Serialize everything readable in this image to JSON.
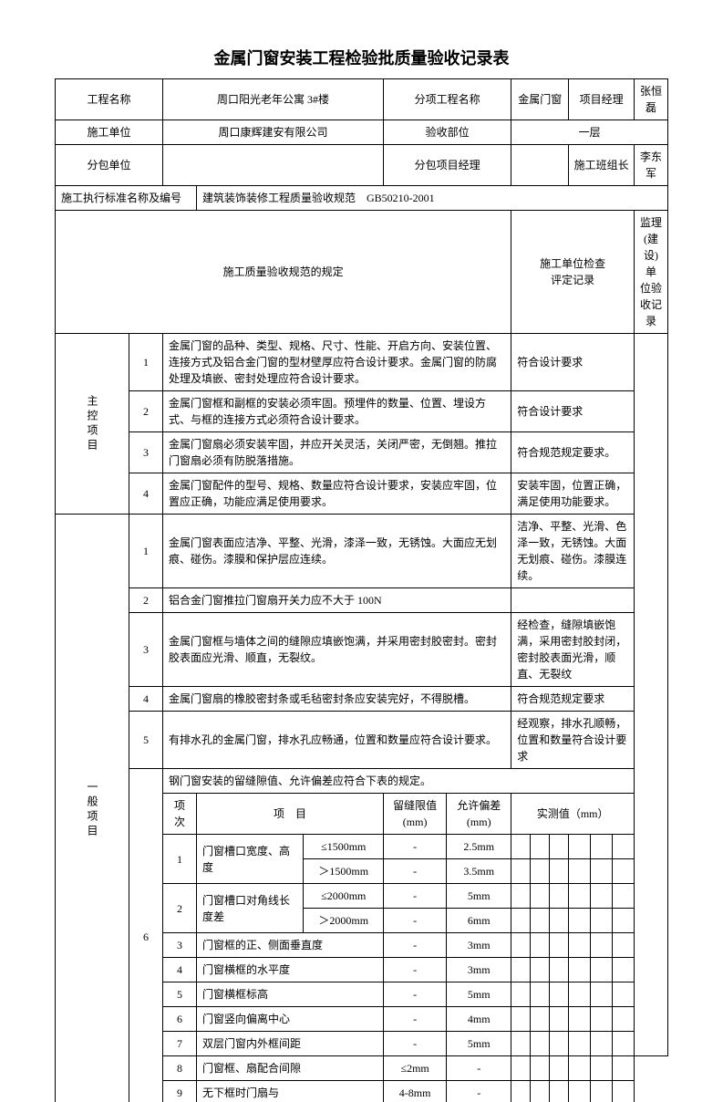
{
  "title": "金属门窗安装工程检验批质量验收记录表",
  "labels": {
    "project_name": "工程名称",
    "sub_project_name": "分项工程名称",
    "pm": "项目经理",
    "construction_unit": "施工单位",
    "acceptance_part": "验收部位",
    "subcontractor": "分包单位",
    "sub_pm": "分包项目经理",
    "team_leader": "施工班组长",
    "standard": "施工执行标准名称及编号",
    "spec_header": "施工质量验收规范的规定",
    "check_header": "施工单位检查\n评定记录",
    "supervise_header": "监理(建设)单\n位验收记录",
    "main_items": "主控项目",
    "general_items": "一般项目",
    "sub_table_intro": "钢门窗安装的留缝隙值、允许偏差应符合下表的规定。",
    "sub_num": "项\n次",
    "sub_item": "项　目",
    "sub_gap": "留缝限值\n(mm)",
    "sub_tol": "允许偏差\n(mm)",
    "sub_measured": "实测值（mm）"
  },
  "info": {
    "project_name": "周口阳光老年公寓 3#楼",
    "sub_project_name": "金属门窗",
    "pm": "张恒磊",
    "construction_unit": "周口康辉建安有限公司",
    "acceptance_part": "一层",
    "subcontractor": "",
    "sub_pm": "",
    "team_leader": "李东军",
    "standard_value": "建筑装饰装修工程质量验收规范　GB50210-2001"
  },
  "main_items": [
    {
      "n": "1",
      "spec": "金属门窗的品种、类型、规格、尺寸、性能、开启方向、安装位置、连接方式及铝合金门窗的型材壁厚应符合设计要求。金属门窗的防腐处理及填嵌、密封处理应符合设计要求。",
      "check": "符合设计要求"
    },
    {
      "n": "2",
      "spec": "金属门窗框和副框的安装必须牢固。预埋件的数量、位置、埋设方式、与框的连接方式必须符合设计要求。",
      "check": "符合设计要求"
    },
    {
      "n": "3",
      "spec": "金属门窗扇必须安装牢固，并应开关灵活，关闭严密，无倒翘。推拉门窗扇必须有防脱落措施。",
      "check": "符合规范规定要求。"
    },
    {
      "n": "4",
      "spec": "金属门窗配件的型号、规格、数量应符合设计要求，安装应牢固，位置应正确，功能应满足使用要求。",
      "check": "安装牢固，位置正确，满足使用功能要求。"
    }
  ],
  "general_items": [
    {
      "n": "1",
      "spec": "金属门窗表面应洁净、平整、光滑，漆泽一致，无锈蚀。大面应无划痕、碰伤。漆膜和保护层应连续。",
      "check": "洁净、平整、光滑、色泽一致，无锈蚀。大面无划痕、碰伤。漆膜连续。"
    },
    {
      "n": "2",
      "spec": "铝合金门窗推拉门窗扇开关力应不大于 100N",
      "check": ""
    },
    {
      "n": "3",
      "spec": "金属门窗框与墙体之间的缝隙应填嵌饱满，并采用密封胶密封。密封胶表面应光滑、顺直，无裂纹。",
      "check": "经检查，缝隙填嵌饱满，采用密封胶封闭，密封胶表面光滑，顺直、无裂纹"
    },
    {
      "n": "4",
      "spec": "金属门窗扇的橡胶密封条或毛毡密封条应安装完好，不得脱槽。",
      "check": "符合规范规定要求"
    },
    {
      "n": "5",
      "spec": "有排水孔的金属门窗，排水孔应畅通，位置和数量应符合设计要求。",
      "check": "经观察，排水孔顺畅，位置和数量符合设计要求"
    }
  ],
  "sub_rows": [
    {
      "n": "1",
      "item": "门窗槽口宽度、高度",
      "cond": "≤1500mm",
      "gap": "-",
      "tol": "2.5mm"
    },
    {
      "n": "",
      "item": "",
      "cond": "＞1500mm",
      "gap": "-",
      "tol": "3.5mm"
    },
    {
      "n": "2",
      "item": "门窗槽口对角线长度差",
      "cond": "≤2000mm",
      "gap": "-",
      "tol": "5mm"
    },
    {
      "n": "",
      "item": "",
      "cond": "＞2000mm",
      "gap": "-",
      "tol": "6mm"
    },
    {
      "n": "3",
      "item": "门窗框的正、侧面垂直度",
      "cond": "",
      "gap": "-",
      "tol": "3mm"
    },
    {
      "n": "4",
      "item": "门窗横框的水平度",
      "cond": "",
      "gap": "-",
      "tol": "3mm"
    },
    {
      "n": "5",
      "item": "门窗横框标高",
      "cond": "",
      "gap": "-",
      "tol": "5mm"
    },
    {
      "n": "6",
      "item": "门窗竖向偏离中心",
      "cond": "",
      "gap": "-",
      "tol": "4mm"
    },
    {
      "n": "7",
      "item": "双层门窗内外框间距",
      "cond": "",
      "gap": "-",
      "tol": "5mm"
    },
    {
      "n": "8",
      "item": "门窗框、扇配合间隙",
      "cond": "",
      "gap": "≤2mm",
      "tol": "-"
    },
    {
      "n": "9",
      "item": "无下框时门扇与",
      "cond": "",
      "gap": "4-8mm",
      "tol": "-"
    }
  ]
}
